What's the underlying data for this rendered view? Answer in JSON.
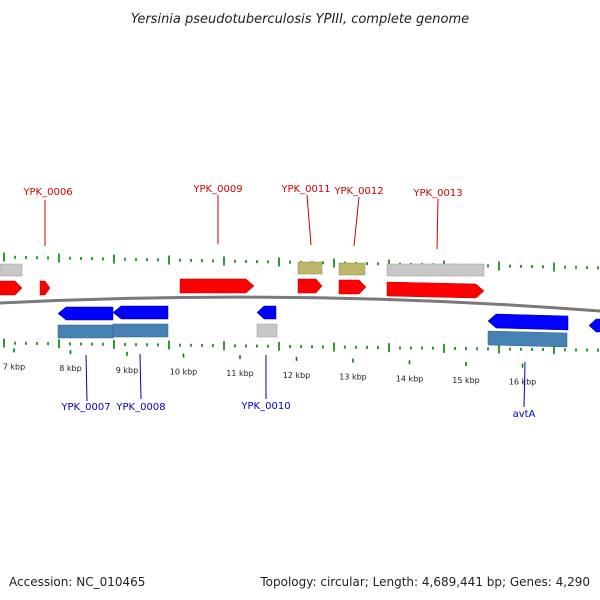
{
  "title": "Yersinia pseudotuberculosis YPIII, complete genome",
  "footer": {
    "accession": "Accession: NC_010465",
    "summary": "Topology: circular; Length: 4,689,441 bp; Genes: 4,290"
  },
  "kbp_labels": [
    "7 kbp",
    "8 kbp",
    "9 kbp",
    "10 kbp",
    "11 kbp",
    "12 kbp",
    "13 kbp",
    "14 kbp",
    "15 kbp",
    "16 kbp"
  ],
  "gene_labels_forward": [
    "YPK_0006",
    "YPK_0009",
    "YPK_0011",
    "YPK_0012",
    "YPK_0013"
  ],
  "gene_labels_reverse": [
    "YPK_0007",
    "YPK_0008",
    "YPK_0010",
    "avtA"
  ],
  "colors": {
    "forward_cds": "#ff0000",
    "reverse_cds": "#0000ff",
    "forward_gene": "#c8c8c8",
    "reverse_gene": "#4682b4",
    "rna": "#bdb76b",
    "ticks": "#008000",
    "backbone": "#808080",
    "forward_label": "#d00000",
    "reverse_label": "#0000c0"
  }
}
